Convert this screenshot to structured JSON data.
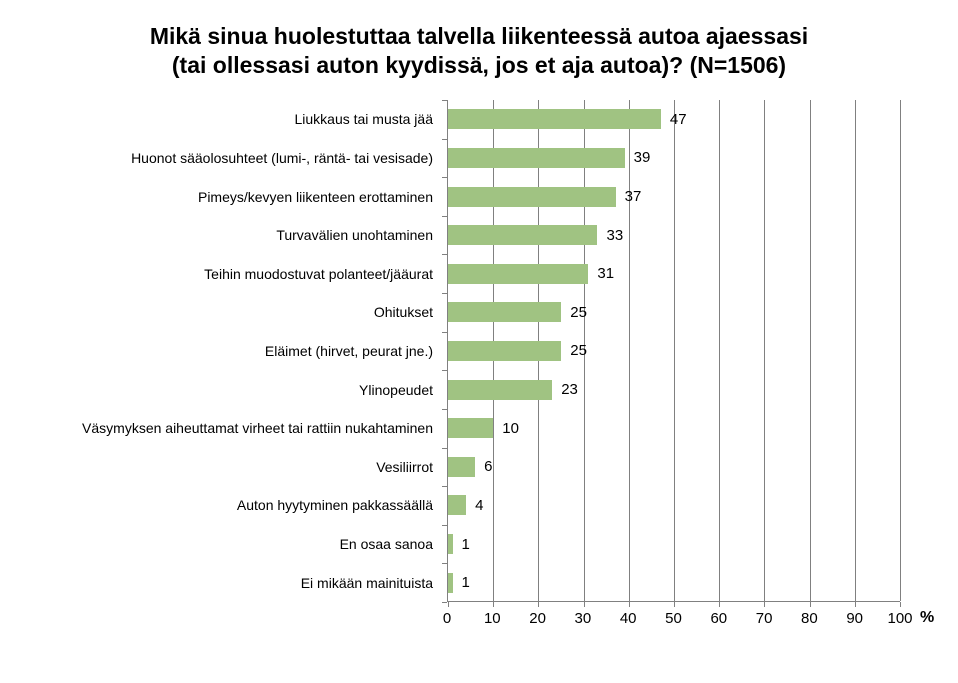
{
  "title": {
    "line1": "Mikä sinua huolestuttaa talvella liikenteessä autoa ajaessasi",
    "line2": "(tai ollessasi auton kyydissä, jos et aja autoa)? (N=1506)"
  },
  "chart_data": {
    "type": "bar",
    "orientation": "horizontal",
    "title": "Mikä sinua huolestuttaa talvella liikenteessä autoa ajaessasi (tai ollessasi auton kyydissä, jos et aja autoa)? (N=1506)",
    "categories": [
      "Liukkaus tai musta jää",
      "Huonot sääolosuhteet (lumi-, räntä- tai vesisade)",
      "Pimeys/kevyen liikenteen erottaminen",
      "Turvavälien unohtaminen",
      "Teihin muodostuvat polanteet/jääurat",
      "Ohitukset",
      "Eläimet (hirvet, peurat jne.)",
      "Ylinopeudet",
      "Väsymyksen aiheuttamat virheet tai rattiin nukahtaminen",
      "Vesiliirrot",
      "Auton hyytyminen pakkassäällä",
      "En osaa sanoa",
      "Ei mikään mainituista"
    ],
    "values": [
      47,
      39,
      37,
      33,
      31,
      25,
      25,
      23,
      10,
      6,
      4,
      1,
      1
    ],
    "xlabel": "%",
    "x_ticks": [
      0,
      10,
      20,
      30,
      40,
      50,
      60,
      70,
      80,
      90,
      100
    ],
    "xlim": [
      0,
      100
    ],
    "grid": true,
    "legend_position": "none",
    "bar_color": "#A0C382",
    "gridline_color": "#808080",
    "axis_color": "#808080",
    "text_color": "#000000"
  }
}
